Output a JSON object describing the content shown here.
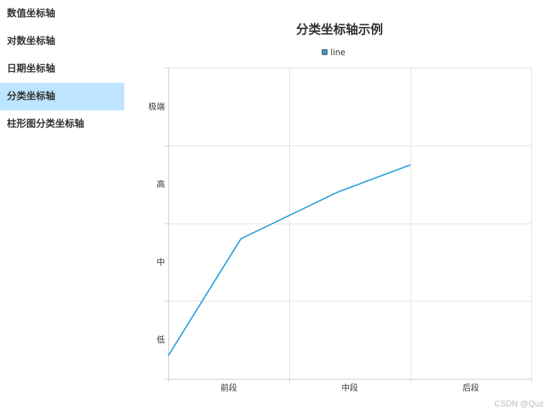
{
  "sidebar": {
    "items": [
      {
        "label": "数值坐标轴",
        "active": false
      },
      {
        "label": "对数坐标轴",
        "active": false
      },
      {
        "label": "日期坐标轴",
        "active": false
      },
      {
        "label": "分类坐标轴",
        "active": true
      },
      {
        "label": "柱形图分类坐标轴",
        "active": false
      }
    ]
  },
  "colors": {
    "series": "#2ea3dc",
    "active_bg": "#bde5ff"
  },
  "watermark": "CSDN @Quz",
  "chart_data": {
    "type": "line",
    "title": "分类坐标轴示例",
    "legend": "line",
    "legend_position": "top",
    "xlabel": "",
    "ylabel": "",
    "x_categories": [
      "前段",
      "中段",
      "后段"
    ],
    "y_categories": [
      "低",
      "中",
      "高",
      "极端"
    ],
    "grid": true,
    "series": [
      {
        "name": "line",
        "x": [
          0.0,
          0.6,
          1.4,
          2.0
        ],
        "y": [
          0.3,
          1.8,
          2.4,
          2.75
        ]
      }
    ]
  }
}
